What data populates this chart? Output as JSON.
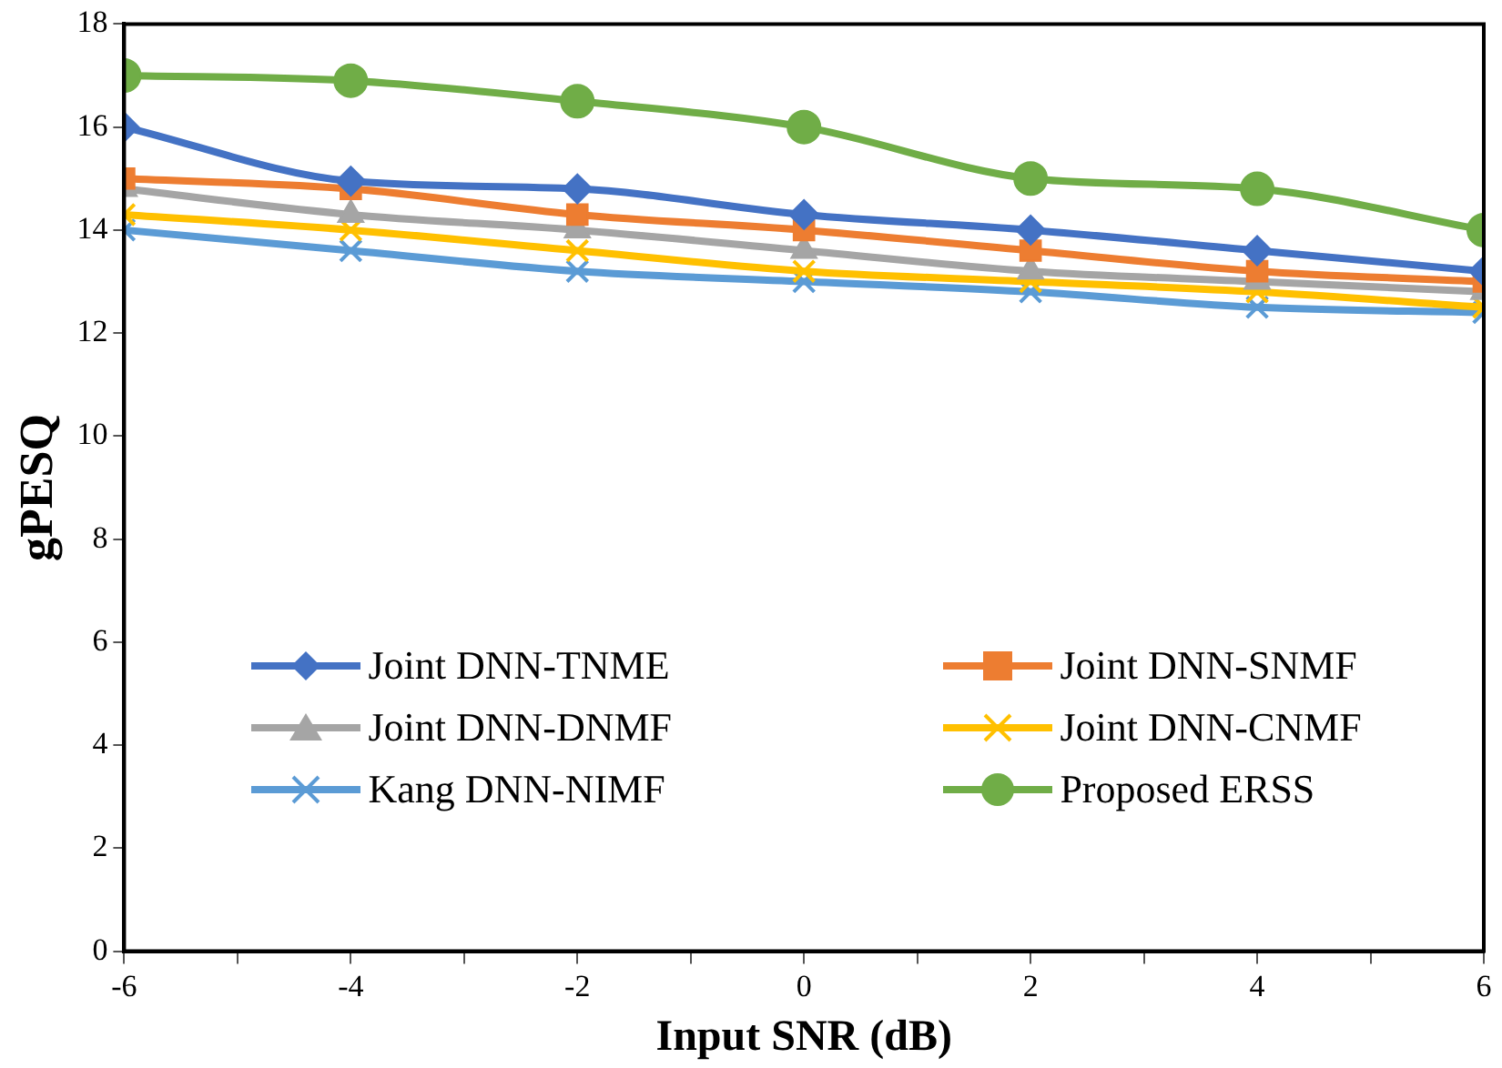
{
  "chart_data": {
    "type": "line",
    "xlabel": "Input SNR (dB)",
    "ylabel": "gPESQ",
    "x": [
      -6,
      -4,
      -2,
      0,
      2,
      4,
      6
    ],
    "xlim": [
      -6,
      6
    ],
    "xticks": [
      -6,
      {
        "value": -5,
        "label": null
      },
      -4,
      {
        "value": -3,
        "label": null
      },
      -2,
      {
        "value": -1,
        "label": null
      },
      {
        "value": 0,
        "label": "0"
      },
      {
        "value": 1,
        "label": null
      },
      2,
      {
        "value": 3,
        "label": null
      },
      4,
      {
        "value": 5,
        "label": null
      },
      6
    ],
    "ylim": [
      0,
      18
    ],
    "yticks": [
      0,
      2,
      4,
      6,
      8,
      10,
      12,
      14,
      16,
      18
    ],
    "grid": false,
    "legend": "bottom",
    "line_style": "solid",
    "series": [
      {
        "name": "Joint DNN-TNME",
        "color": "#4472c4",
        "marker": "diamond",
        "values": [
          16,
          14.95,
          14.8,
          14.3,
          14.0,
          13.6,
          13.2
        ]
      },
      {
        "name": "Joint DNN-SNMF",
        "color": "#ed7d31",
        "marker": "square",
        "values": [
          15,
          14.8,
          14.3,
          14.0,
          13.6,
          13.2,
          13.0
        ]
      },
      {
        "name": "Joint DNN-DNMF",
        "color": "#a5a5a5",
        "marker": "triangle",
        "values": [
          14.8,
          14.3,
          14.0,
          13.6,
          13.2,
          13.0,
          12.8
        ]
      },
      {
        "name": "Joint DNN-CNMF",
        "color": "#ffc000",
        "marker": "cross",
        "values": [
          14.3,
          14.0,
          13.6,
          13.2,
          13.0,
          12.8,
          12.5
        ]
      },
      {
        "name": "Kang DNN-NIMF",
        "color": "#5b9bd5",
        "marker": "cross",
        "values": [
          14.0,
          13.6,
          13.2,
          13.0,
          12.8,
          12.5,
          12.4
        ]
      },
      {
        "name": "Proposed ERSS",
        "color": "#70ad47",
        "marker": "circle",
        "values": [
          17,
          16.9,
          16.5,
          16.0,
          15.0,
          14.8,
          14.0
        ]
      }
    ]
  }
}
